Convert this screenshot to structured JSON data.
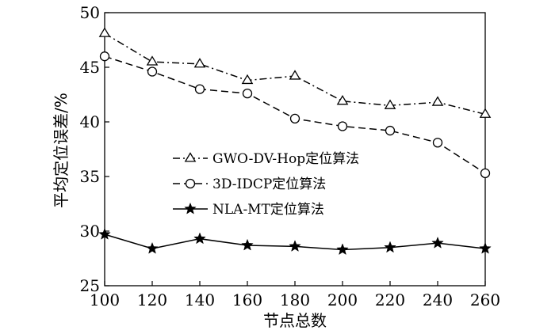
{
  "chart_data": {
    "type": "line",
    "xlabel": "节点总数",
    "ylabel": "平均定位误差/%",
    "x": [
      100,
      120,
      140,
      160,
      180,
      200,
      220,
      240,
      260
    ],
    "xlim": [
      100,
      260
    ],
    "ylim": [
      25,
      50
    ],
    "xticks": [
      "100",
      "120",
      "140",
      "160",
      "180",
      "200",
      "220",
      "240",
      "260"
    ],
    "yticks": [
      "25",
      "30",
      "35",
      "40",
      "45",
      "50"
    ],
    "legend_position": "center-left",
    "grid": false,
    "series": [
      {
        "name": "GWO-DV-Hop定位算法",
        "marker": "triangle",
        "dash": "dash-dot",
        "values": [
          48.1,
          45.5,
          45.3,
          43.8,
          44.2,
          41.9,
          41.5,
          41.8,
          40.7
        ]
      },
      {
        "name": "3D-IDCP定位算法",
        "marker": "circle",
        "dash": "dashed",
        "values": [
          46.0,
          44.6,
          43.0,
          42.6,
          40.3,
          39.6,
          39.2,
          38.1,
          35.3
        ]
      },
      {
        "name": "NLA-MT定位算法",
        "marker": "star",
        "dash": "solid",
        "values": [
          29.7,
          28.4,
          29.3,
          28.7,
          28.6,
          28.3,
          28.5,
          28.9,
          28.4
        ]
      }
    ]
  }
}
